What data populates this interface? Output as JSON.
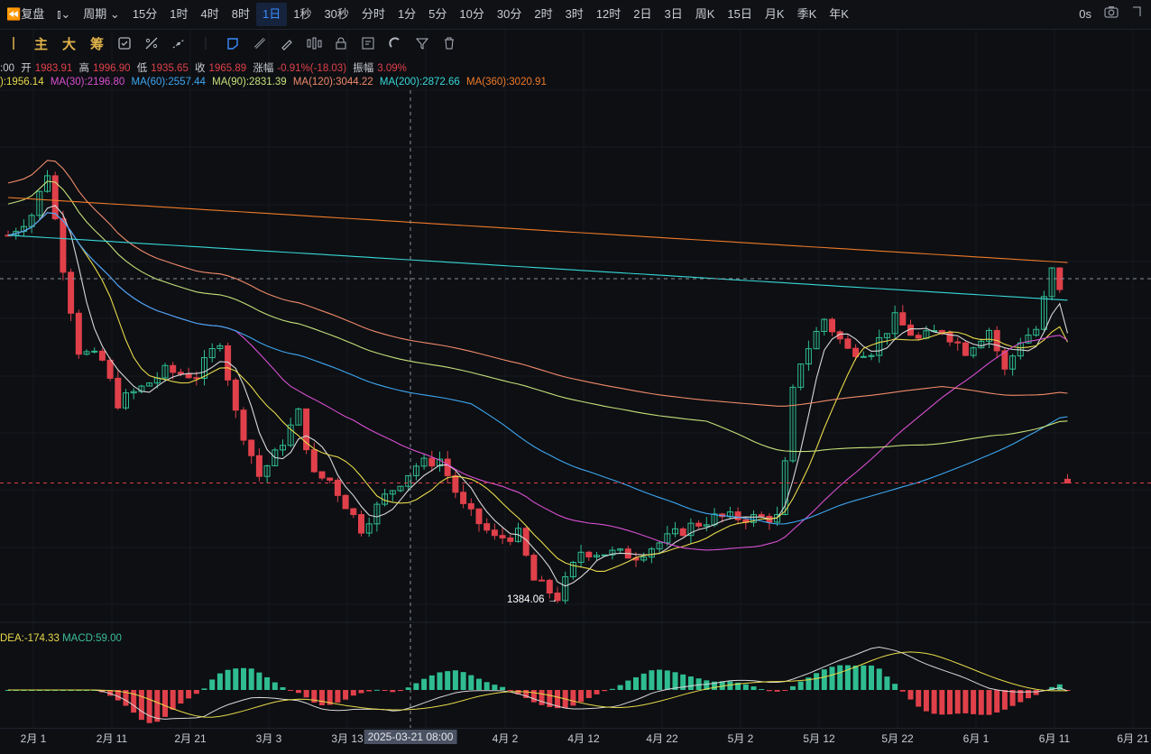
{
  "topbar": {
    "replay_label": "复盘",
    "period_label": "周期",
    "intervals": [
      "15分",
      "1时",
      "4时",
      "8时",
      "1日",
      "1秒",
      "30秒",
      "分时",
      "1分",
      "5分",
      "10分",
      "30分",
      "2时",
      "3时",
      "12时",
      "2日",
      "3日",
      "周K",
      "15日",
      "月K",
      "季K",
      "年K"
    ],
    "active_interval": "1日",
    "latency": "0s"
  },
  "toolbar": {
    "main": "主",
    "big": "大",
    "chips": "筹"
  },
  "ohlc": {
    "time_prefix": ":00",
    "open_label": "开",
    "open": "1983.91",
    "high_label": "高",
    "high": "1996.90",
    "low_label": "低",
    "low": "1935.65",
    "close_label": "收",
    "close": "1965.89",
    "change_label": "涨幅",
    "change": "-0.91%(-18.03)",
    "amp_label": "振幅",
    "amp": "3.09%"
  },
  "ma_legend": [
    {
      "text": "):1956.14",
      "color": "#e8d94a"
    },
    {
      "text": "MA(30):2196.80",
      "color": "#d94fd1"
    },
    {
      "text": "MA(60):2557.44",
      "color": "#3ea6f0"
    },
    {
      "text": "MA(90):2831.39",
      "color": "#c7e17a"
    },
    {
      "text": "MA(120):3044.22",
      "color": "#f08a6a"
    },
    {
      "text": "MA(200):2872.66",
      "color": "#38d8d8"
    },
    {
      "text": "MA(360):3020.91",
      "color": "#f07a28"
    }
  ],
  "macd_legend": {
    "dea": "DEA:-174.33",
    "macd": "MACD:59.00",
    "dea_color": "#e8d94a",
    "macd_color": "#3dbf9a"
  },
  "low_marker": "1384.06 →",
  "crosshair_date": "2025-03-21 08:00",
  "colors": {
    "up": "#2fbd8f",
    "down": "#e0404a",
    "accent": "#3b8bff"
  },
  "chart_data": {
    "type": "candlestick",
    "x_ticks": [
      "2月 1",
      "2月 11",
      "2月 21",
      "3月 3",
      "3月 13",
      "3月 21",
      "4月 2",
      "4月 12",
      "4月 22",
      "5月 2",
      "5月 12",
      "5月 22",
      "6月 1",
      "6月 11",
      "6月 21"
    ],
    "last_candle": {
      "open": 1983.91,
      "high": 1996.9,
      "low": 1935.65,
      "close": 1965.89
    },
    "period_low": 1384.06,
    "ma_last": {
      "MA(30)": 2196.8,
      "MA(60)": 2557.44,
      "MA(90)": 2831.39,
      "MA(120)": 3044.22,
      "MA(200)": 2872.66,
      "MA(360)": 3020.91
    },
    "macd_last": {
      "DEA": -174.33,
      "MACD": 59.0
    }
  }
}
